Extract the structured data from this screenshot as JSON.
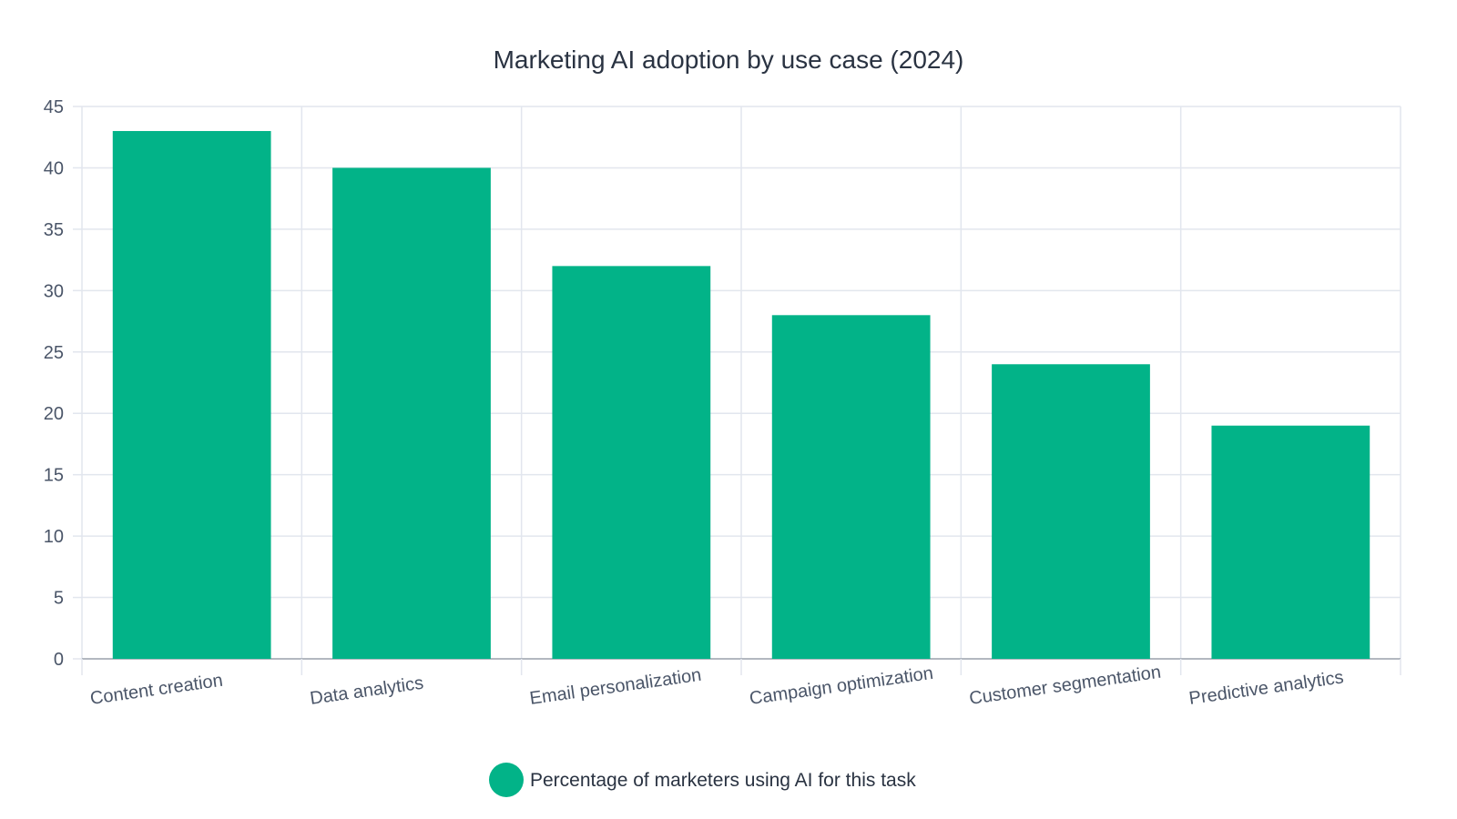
{
  "chart_data": {
    "type": "bar",
    "title": "Marketing AI adoption by use case (2024)",
    "categories": [
      "Content creation",
      "Data analytics",
      "Email personalization",
      "Campaign optimization",
      "Customer segmentation",
      "Predictive analytics"
    ],
    "series": [
      {
        "name": "Percentage of marketers using AI for this task",
        "values": [
          43,
          40,
          32,
          28,
          24,
          19
        ],
        "color": "#02b388"
      }
    ],
    "xlabel": "",
    "ylabel": "",
    "ylim": [
      0,
      45
    ],
    "yticks": [
      0,
      5,
      10,
      15,
      20,
      25,
      30,
      35,
      40,
      45
    ],
    "grid": true,
    "legend_position": "bottom-center",
    "colors": {
      "grid": "#e2e6ee",
      "axis": "#9aa1ab",
      "text": "#4a5568",
      "title": "#2a3342"
    }
  }
}
